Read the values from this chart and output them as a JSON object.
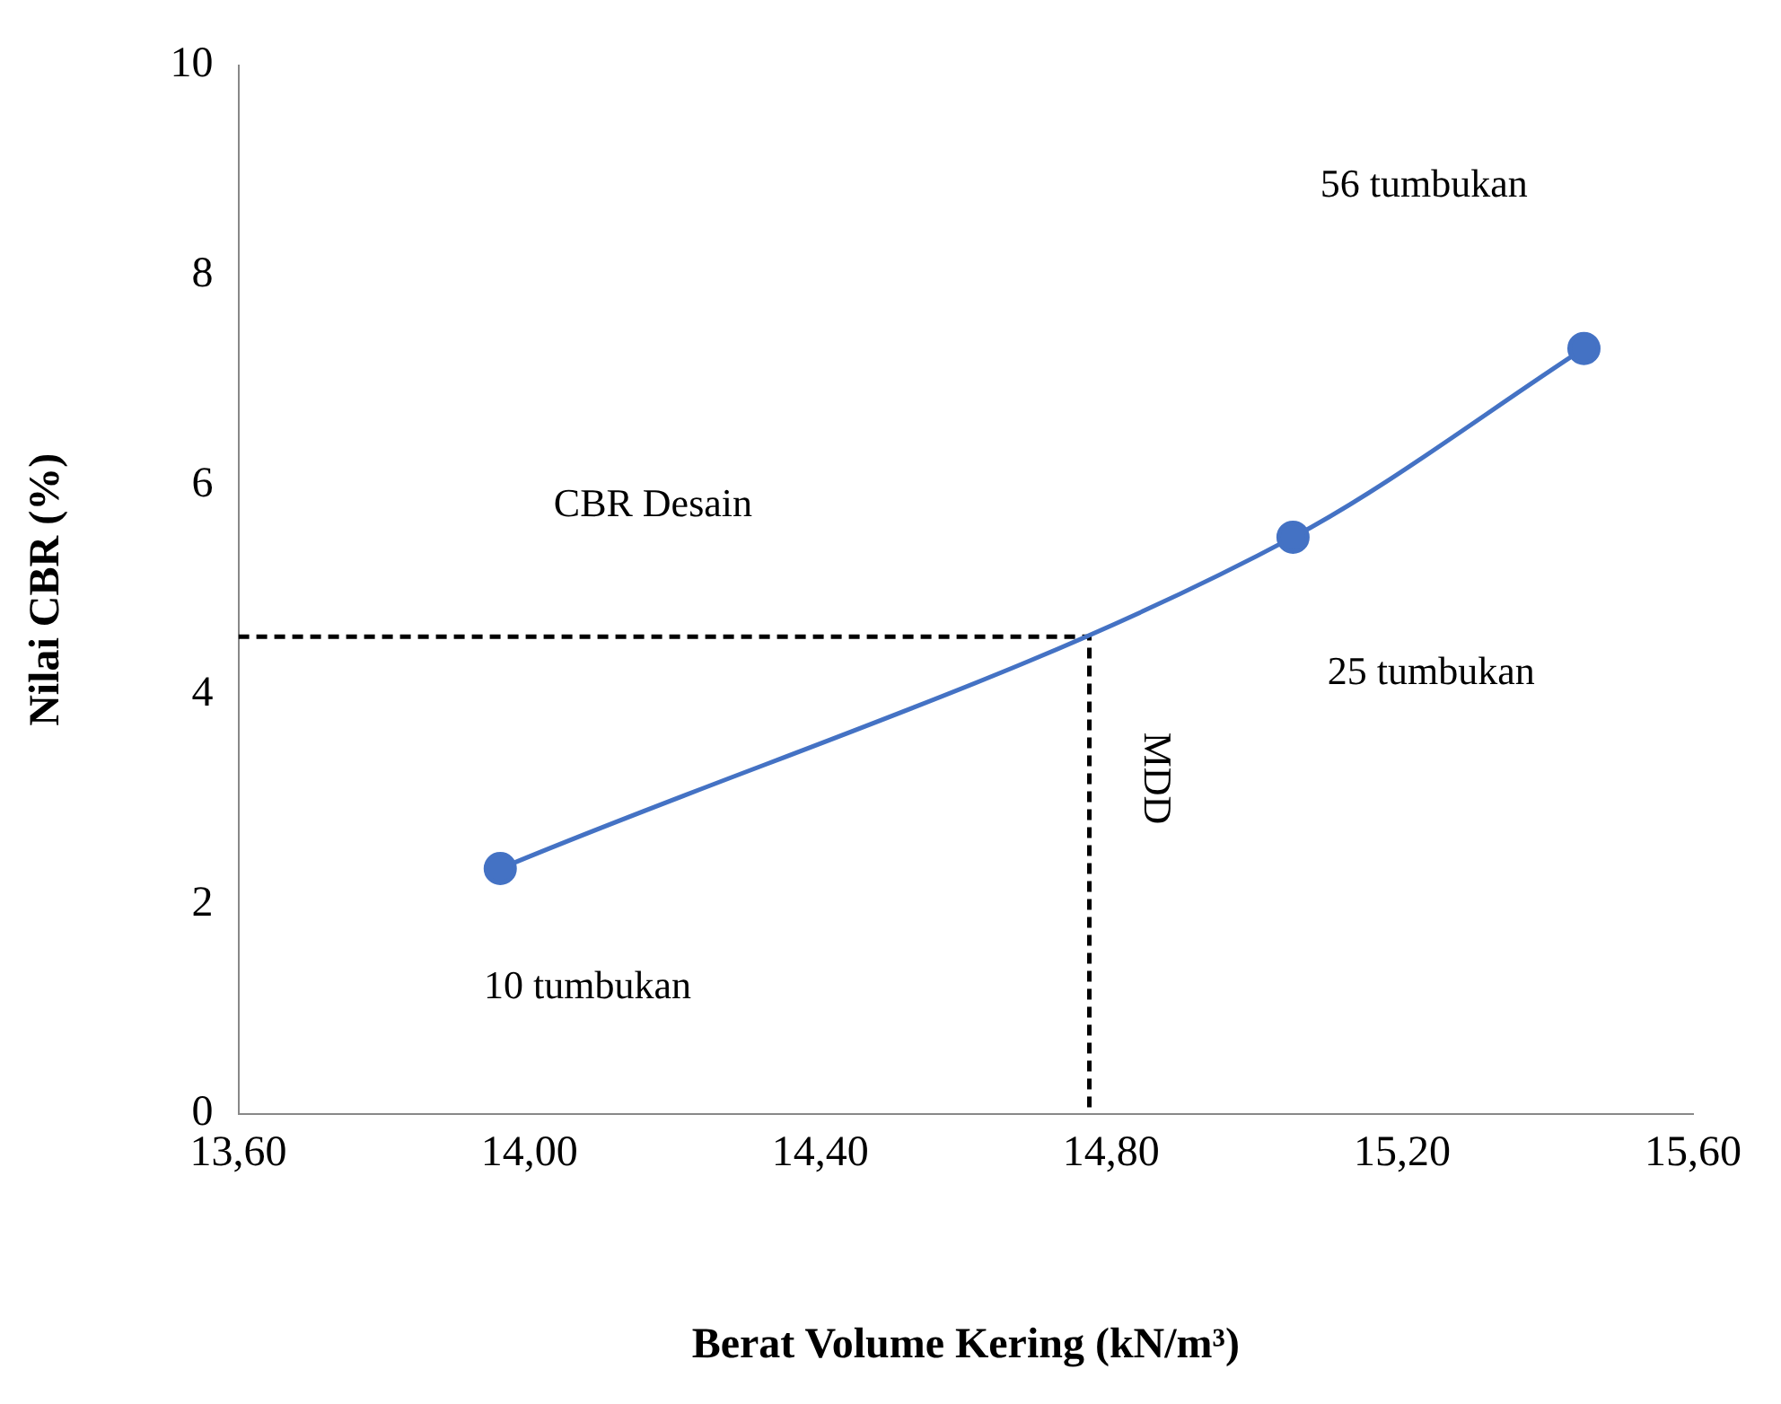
{
  "chart_data": {
    "type": "line",
    "xlabel": "Berat Volume Kering (kN/m³)",
    "ylabel": "Nilai CBR (%)",
    "xlim": [
      13.6,
      15.6
    ],
    "xticks": [
      {
        "value": 13.6,
        "label": "13,60"
      },
      {
        "value": 14.0,
        "label": "14,00"
      },
      {
        "value": 14.4,
        "label": "14,40"
      },
      {
        "value": 14.8,
        "label": "14,80"
      },
      {
        "value": 15.2,
        "label": "15,20"
      },
      {
        "value": 15.6,
        "label": "15,60"
      }
    ],
    "ylim": [
      0,
      10
    ],
    "yticks": [
      0,
      2,
      4,
      6,
      8,
      10
    ],
    "grid": false,
    "series": [
      {
        "color": "#4472c4",
        "marker": "circle",
        "line_style": "solid",
        "x": [
          13.96,
          15.05,
          15.45
        ],
        "values": [
          2.34,
          5.5,
          7.3
        ]
      },
      {
        "color": "#000000",
        "marker": "none",
        "line_style": "dashed",
        "x": [
          13.6,
          14.77,
          14.77
        ],
        "values": [
          4.55,
          4.55,
          0
        ]
      }
    ],
    "annotations": [
      "56 tumbukan",
      "25 tumbukan",
      "10 tumbukan",
      "CBR Desain",
      "MDD"
    ]
  }
}
